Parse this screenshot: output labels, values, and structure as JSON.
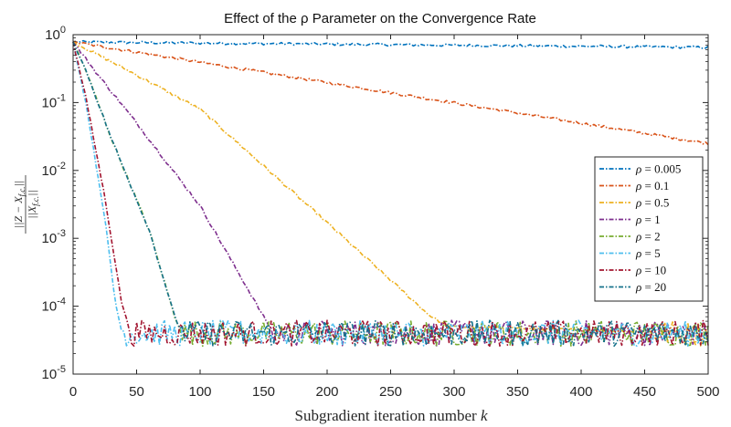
{
  "chart_data": {
    "type": "line",
    "title": "Effect of the ρ Parameter on the Convergence Rate",
    "xlabel": "Subgradient iteration number k",
    "ylabel": "||Z − X_f.c.|| / ||X_f.c.||",
    "ylabel_numerator": "||Z − X",
    "ylabel_numerator_sub": "f.c.",
    "ylabel_denominator": "||X",
    "ylabel_denominator_sub": "f.c.",
    "xlabel_text": "Subgradient iteration number ",
    "xlabel_var": "k",
    "xlim": [
      0,
      500
    ],
    "ylim": [
      1e-05,
      1
    ],
    "yscale": "log",
    "grid": false,
    "legend_position": "right",
    "x_ticks": [
      "0",
      "50",
      "100",
      "150",
      "200",
      "250",
      "300",
      "350",
      "400",
      "450",
      "500"
    ],
    "y_ticks": [
      {
        "base": "10",
        "exp": "-5"
      },
      {
        "base": "10",
        "exp": "-4"
      },
      {
        "base": "10",
        "exp": "-3"
      },
      {
        "base": "10",
        "exp": "-2"
      },
      {
        "base": "10",
        "exp": "-1"
      },
      {
        "base": "10",
        "exp": "0"
      }
    ],
    "noise_floor": 4e-05,
    "series": [
      {
        "name": "ρ = 0.005",
        "rho": "0.005",
        "color": "#0072BD",
        "points": [
          [
            0,
            0.78
          ],
          [
            500,
            0.65
          ]
        ]
      },
      {
        "name": "ρ = 0.1",
        "rho": "0.1",
        "color": "#D95319",
        "points": [
          [
            0,
            0.78
          ],
          [
            500,
            0.025
          ]
        ]
      },
      {
        "name": "ρ = 0.5",
        "rho": "0.5",
        "color": "#EDB120",
        "points": [
          [
            0,
            0.78
          ],
          [
            40,
            0.32
          ],
          [
            100,
            0.08
          ],
          [
            200,
            0.0017
          ],
          [
            280,
            7.5e-05
          ],
          [
            295,
            5e-05
          ],
          [
            500,
            4e-05
          ]
        ]
      },
      {
        "name": "ρ = 1",
        "rho": "1",
        "color": "#7E2F8E",
        "points": [
          [
            0,
            0.78
          ],
          [
            20,
            0.25
          ],
          [
            50,
            0.05
          ],
          [
            100,
            0.003
          ],
          [
            150,
            7e-05
          ],
          [
            158,
            4e-05
          ],
          [
            500,
            4e-05
          ]
        ]
      },
      {
        "name": "ρ = 2",
        "rho": "2",
        "color": "#77AC30",
        "points": [
          [
            0,
            0.78
          ],
          [
            10,
            0.3
          ],
          [
            30,
            0.03
          ],
          [
            60,
            0.0013
          ],
          [
            80,
            7e-05
          ],
          [
            86,
            4e-05
          ],
          [
            500,
            4e-05
          ]
        ]
      },
      {
        "name": "ρ = 5",
        "rho": "5",
        "color": "#4DBEEE",
        "points": [
          [
            0,
            0.78
          ],
          [
            10,
            0.1
          ],
          [
            25,
            0.002
          ],
          [
            33,
            0.00012
          ],
          [
            40,
            3e-05
          ],
          [
            500,
            4e-05
          ]
        ]
      },
      {
        "name": "ρ = 10",
        "rho": "10",
        "color": "#A2142F",
        "points": [
          [
            0,
            0.78
          ],
          [
            10,
            0.12
          ],
          [
            25,
            0.004
          ],
          [
            38,
            0.00012
          ],
          [
            45,
            4e-05
          ],
          [
            500,
            4e-05
          ]
        ]
      },
      {
        "name": "ρ = 20",
        "rho": "20",
        "color": "#16718B",
        "points": [
          [
            0,
            0.78
          ],
          [
            10,
            0.3
          ],
          [
            30,
            0.03
          ],
          [
            60,
            0.0013
          ],
          [
            80,
            7e-05
          ],
          [
            86,
            4e-05
          ],
          [
            500,
            4e-05
          ]
        ]
      }
    ]
  }
}
